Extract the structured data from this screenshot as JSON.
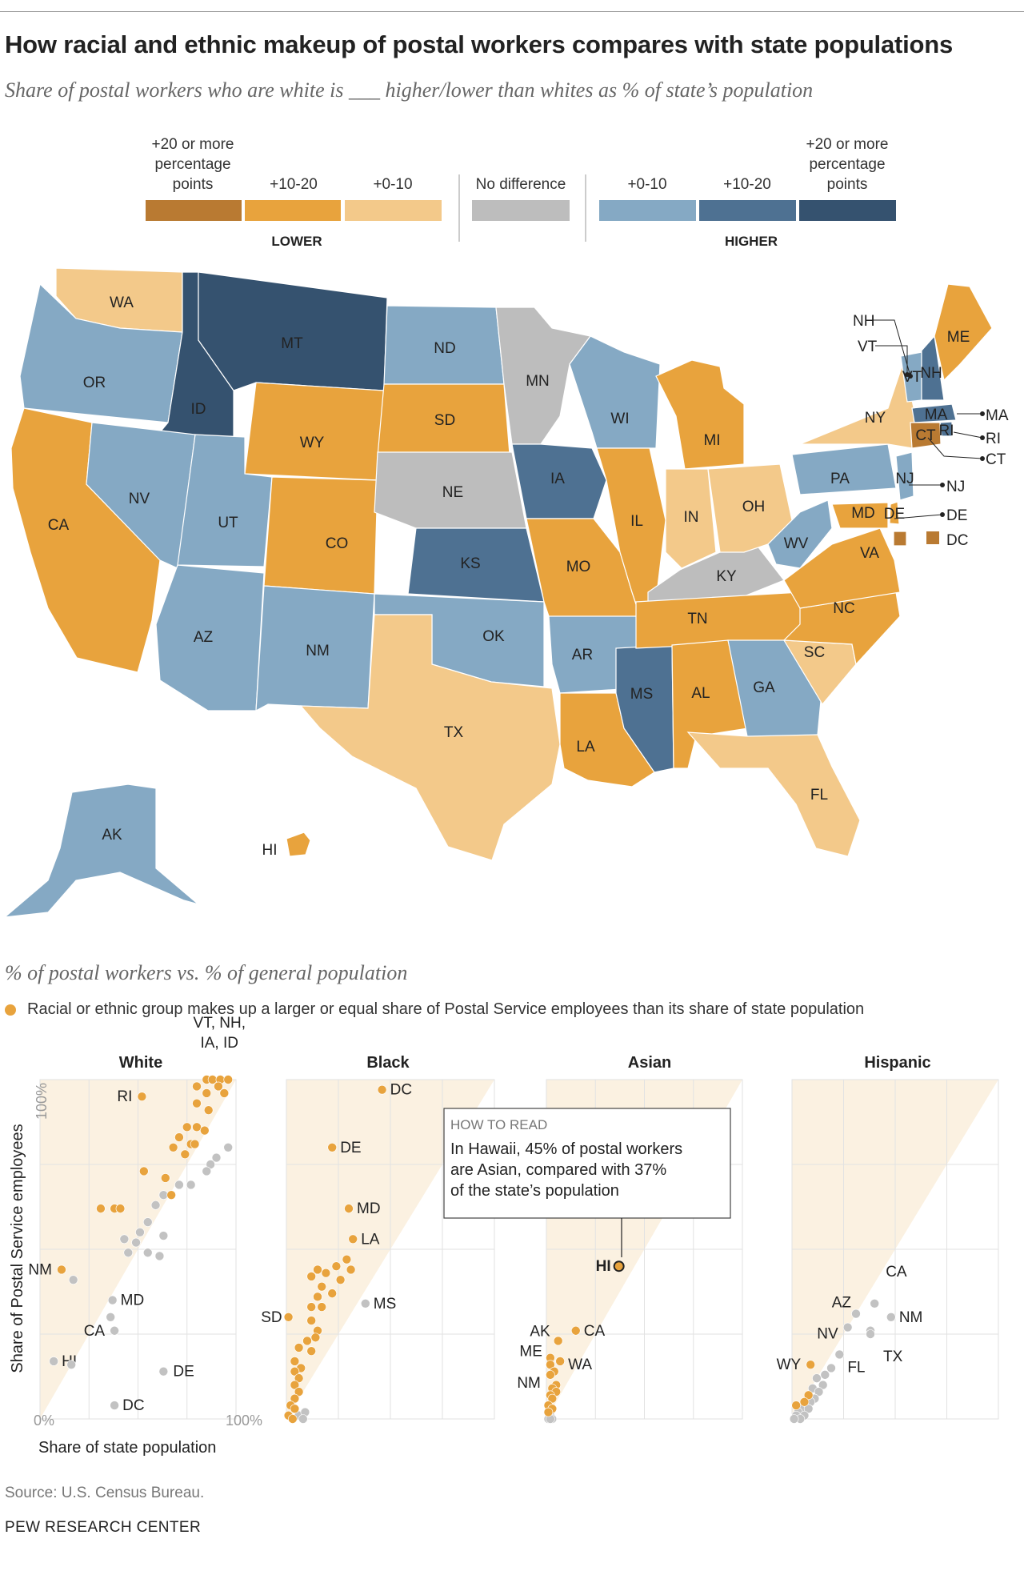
{
  "title": "How racial and ethnic makeup of postal workers compares with state populations",
  "subtitle": "Share of postal workers who are white is ___ higher/lower than whites as % of state’s population",
  "legend": {
    "items": [
      {
        "label": "+20 or more percentage points",
        "color": "#b97a32"
      },
      {
        "label": "+10-20",
        "color": "#e8a33d"
      },
      {
        "label": "+0-10",
        "color": "#f3c98a"
      },
      {
        "label": "No difference",
        "color": "#bdbdbd"
      },
      {
        "label": "+0-10",
        "color": "#85a9c4"
      },
      {
        "label": "+10-20",
        "color": "#4e7192"
      },
      {
        "label": "+20 or more percentage points",
        "color": "#35526f"
      }
    ],
    "lower_label": "LOWER",
    "higher_label": "HIGHER"
  },
  "states": [
    {
      "abbr": "WA",
      "category": "lower_0_10"
    },
    {
      "abbr": "OR",
      "category": "higher_0_10"
    },
    {
      "abbr": "CA",
      "category": "lower_10_20"
    },
    {
      "abbr": "ID",
      "category": "higher_20"
    },
    {
      "abbr": "NV",
      "category": "higher_0_10"
    },
    {
      "abbr": "MT",
      "category": "higher_20"
    },
    {
      "abbr": "WY",
      "category": "lower_10_20"
    },
    {
      "abbr": "UT",
      "category": "higher_0_10"
    },
    {
      "abbr": "CO",
      "category": "lower_10_20"
    },
    {
      "abbr": "AZ",
      "category": "higher_0_10"
    },
    {
      "abbr": "NM",
      "category": "higher_0_10"
    },
    {
      "abbr": "ND",
      "category": "higher_0_10"
    },
    {
      "abbr": "SD",
      "category": "lower_10_20"
    },
    {
      "abbr": "NE",
      "category": "no_difference"
    },
    {
      "abbr": "KS",
      "category": "higher_10_20"
    },
    {
      "abbr": "OK",
      "category": "higher_0_10"
    },
    {
      "abbr": "TX",
      "category": "lower_0_10"
    },
    {
      "abbr": "MN",
      "category": "no_difference"
    },
    {
      "abbr": "IA",
      "category": "higher_10_20"
    },
    {
      "abbr": "MO",
      "category": "lower_10_20"
    },
    {
      "abbr": "AR",
      "category": "higher_0_10"
    },
    {
      "abbr": "LA",
      "category": "lower_10_20"
    },
    {
      "abbr": "WI",
      "category": "higher_0_10"
    },
    {
      "abbr": "IL",
      "category": "lower_10_20"
    },
    {
      "abbr": "MS",
      "category": "higher_10_20"
    },
    {
      "abbr": "MI",
      "category": "lower_10_20"
    },
    {
      "abbr": "IN",
      "category": "lower_0_10"
    },
    {
      "abbr": "KY",
      "category": "no_difference"
    },
    {
      "abbr": "TN",
      "category": "lower_10_20"
    },
    {
      "abbr": "AL",
      "category": "lower_10_20"
    },
    {
      "abbr": "OH",
      "category": "lower_0_10"
    },
    {
      "abbr": "GA",
      "category": "higher_0_10"
    },
    {
      "abbr": "FL",
      "category": "lower_0_10"
    },
    {
      "abbr": "SC",
      "category": "lower_0_10"
    },
    {
      "abbr": "NC",
      "category": "lower_10_20"
    },
    {
      "abbr": "VA",
      "category": "lower_10_20"
    },
    {
      "abbr": "WV",
      "category": "higher_0_10"
    },
    {
      "abbr": "PA",
      "category": "higher_0_10"
    },
    {
      "abbr": "NY",
      "category": "lower_0_10"
    },
    {
      "abbr": "VT",
      "category": "higher_0_10"
    },
    {
      "abbr": "NH",
      "category": "higher_10_20"
    },
    {
      "abbr": "ME",
      "category": "lower_10_20"
    },
    {
      "abbr": "MA",
      "category": "higher_10_20"
    },
    {
      "abbr": "RI",
      "category": "higher_10_20"
    },
    {
      "abbr": "CT",
      "category": "lower_20"
    },
    {
      "abbr": "NJ",
      "category": "higher_0_10"
    },
    {
      "abbr": "DE",
      "category": "lower_10_20"
    },
    {
      "abbr": "MD",
      "category": "lower_10_20"
    },
    {
      "abbr": "DC",
      "category": "lower_20"
    },
    {
      "abbr": "AK",
      "category": "higher_0_10"
    },
    {
      "abbr": "HI",
      "category": "lower_10_20"
    }
  ],
  "section_subtitle": "% of postal workers vs. % of general population",
  "dot_legend": "Racial or ethnic group makes up a larger or equal share of Postal Service employees than its share of state population",
  "axes": {
    "y_label": "Share of Postal Service employees",
    "x_label": "Share of state population",
    "tick_0": "0%",
    "tick_100_y": "100%",
    "tick_100_x": "100%"
  },
  "how_to_read": {
    "heading": "HOW TO READ",
    "line1": "In Hawaii, 45% of postal workers",
    "line2": "are Asian, compared with 37%",
    "line3": "of the state’s population"
  },
  "source": "Source: U.S. Census Bureau.",
  "credit": "PEW RESEARCH CENTER",
  "colors": {
    "dot_orange": "#e8a33d",
    "dot_gray": "#c2c2c2",
    "triangle": "#fbf1e1"
  },
  "chart_data": {
    "type": "scatter",
    "x_label": "Share of state population",
    "y_label": "Share of Postal Service employees",
    "xlim": [
      0,
      100
    ],
    "ylim": [
      0,
      100
    ],
    "panels": [
      {
        "title": "White",
        "points": [
          {
            "x": 85,
            "y": 100,
            "label": "VT, NH, IA, ID",
            "above": true
          },
          {
            "x": 88,
            "y": 100,
            "above": true
          },
          {
            "x": 92,
            "y": 100,
            "above": true
          },
          {
            "x": 96,
            "y": 100,
            "above": true
          },
          {
            "x": 80,
            "y": 98,
            "above": true
          },
          {
            "x": 91,
            "y": 98,
            "above": true
          },
          {
            "x": 85,
            "y": 96,
            "above": true
          },
          {
            "x": 94,
            "y": 96,
            "above": true
          },
          {
            "x": 52,
            "y": 95,
            "label": "RI",
            "above": true
          },
          {
            "x": 80,
            "y": 93,
            "above": true
          },
          {
            "x": 86,
            "y": 91,
            "above": true
          },
          {
            "x": 75,
            "y": 86,
            "above": true
          },
          {
            "x": 80,
            "y": 86,
            "above": true
          },
          {
            "x": 84,
            "y": 85,
            "above": true
          },
          {
            "x": 71,
            "y": 83,
            "above": true
          },
          {
            "x": 77,
            "y": 81,
            "above": true
          },
          {
            "x": 79,
            "y": 81,
            "above": true
          },
          {
            "x": 68,
            "y": 80,
            "above": true
          },
          {
            "x": 74,
            "y": 78,
            "above": true
          },
          {
            "x": 53,
            "y": 73,
            "above": true
          },
          {
            "x": 64,
            "y": 71,
            "above": true
          },
          {
            "x": 67,
            "y": 66,
            "above": true
          },
          {
            "x": 31,
            "y": 62,
            "above": true
          },
          {
            "x": 38,
            "y": 62,
            "above": true
          },
          {
            "x": 41,
            "y": 62,
            "above": true
          },
          {
            "x": 11,
            "y": 44,
            "label": "NM",
            "above": true
          },
          {
            "x": 96,
            "y": 80,
            "above": false
          },
          {
            "x": 90,
            "y": 77,
            "above": false
          },
          {
            "x": 87,
            "y": 75,
            "above": false
          },
          {
            "x": 85,
            "y": 73,
            "above": false
          },
          {
            "x": 71,
            "y": 69,
            "above": false
          },
          {
            "x": 77,
            "y": 69,
            "above": false
          },
          {
            "x": 63,
            "y": 66,
            "above": false
          },
          {
            "x": 59,
            "y": 63,
            "above": false
          },
          {
            "x": 55,
            "y": 58,
            "above": false
          },
          {
            "x": 51,
            "y": 55,
            "above": false
          },
          {
            "x": 63,
            "y": 54,
            "above": false
          },
          {
            "x": 43,
            "y": 53,
            "above": false
          },
          {
            "x": 49,
            "y": 52,
            "above": false
          },
          {
            "x": 45,
            "y": 49,
            "above": false
          },
          {
            "x": 55,
            "y": 49,
            "above": false
          },
          {
            "x": 61,
            "y": 48,
            "above": false
          },
          {
            "x": 17,
            "y": 41,
            "above": false
          },
          {
            "x": 37,
            "y": 35,
            "label": "MD",
            "above": false
          },
          {
            "x": 36,
            "y": 30,
            "above": false
          },
          {
            "x": 38,
            "y": 26,
            "label": "CA",
            "above": false
          },
          {
            "x": 7,
            "y": 17,
            "label": "HI",
            "above": false
          },
          {
            "x": 16,
            "y": 16,
            "above": false
          },
          {
            "x": 63,
            "y": 14,
            "label": "DE",
            "above": false
          },
          {
            "x": 38,
            "y": 4,
            "label": "DC",
            "above": false
          }
        ]
      },
      {
        "title": "Black",
        "points": [
          {
            "x": 46,
            "y": 97,
            "label": "DC",
            "above": true
          },
          {
            "x": 22,
            "y": 80,
            "label": "DE",
            "above": true
          },
          {
            "x": 30,
            "y": 62,
            "label": "MD",
            "above": true
          },
          {
            "x": 32,
            "y": 53,
            "label": "LA",
            "above": true
          },
          {
            "x": 29,
            "y": 47,
            "above": true
          },
          {
            "x": 24,
            "y": 45,
            "above": true
          },
          {
            "x": 31,
            "y": 44,
            "above": true
          },
          {
            "x": 15,
            "y": 44,
            "above": true
          },
          {
            "x": 19,
            "y": 43,
            "above": true
          },
          {
            "x": 12,
            "y": 42,
            "above": true
          },
          {
            "x": 26,
            "y": 41,
            "above": true
          },
          {
            "x": 17,
            "y": 39,
            "above": true
          },
          {
            "x": 22,
            "y": 37,
            "above": true
          },
          {
            "x": 15,
            "y": 36,
            "above": true
          },
          {
            "x": 12,
            "y": 33,
            "above": true
          },
          {
            "x": 17,
            "y": 33,
            "above": true
          },
          {
            "x": 12,
            "y": 29,
            "above": true
          },
          {
            "x": 15,
            "y": 26,
            "above": true
          },
          {
            "x": 14,
            "y": 24,
            "above": true
          },
          {
            "x": 1,
            "y": 30,
            "label": "SD",
            "above": true
          },
          {
            "x": 10,
            "y": 23,
            "above": true
          },
          {
            "x": 6,
            "y": 21,
            "above": true
          },
          {
            "x": 12,
            "y": 20,
            "above": true
          },
          {
            "x": 4,
            "y": 17,
            "above": true
          },
          {
            "x": 7,
            "y": 15,
            "above": true
          },
          {
            "x": 4,
            "y": 14,
            "above": true
          },
          {
            "x": 6,
            "y": 12,
            "above": true
          },
          {
            "x": 4,
            "y": 10,
            "above": true
          },
          {
            "x": 6,
            "y": 8,
            "above": true
          },
          {
            "x": 4,
            "y": 6,
            "above": true
          },
          {
            "x": 2,
            "y": 4,
            "above": true
          },
          {
            "x": 4,
            "y": 3,
            "above": true
          },
          {
            "x": 1,
            "y": 1,
            "above": true
          },
          {
            "x": 3,
            "y": 0,
            "above": true
          },
          {
            "x": 38,
            "y": 34,
            "label": "MS",
            "above": false
          },
          {
            "x": 6,
            "y": 1,
            "above": false
          },
          {
            "x": 9,
            "y": 2,
            "above": false
          },
          {
            "x": 8,
            "y": 0,
            "above": false
          }
        ]
      },
      {
        "title": "Asian",
        "points": [
          {
            "x": 37,
            "y": 45,
            "label": "HI",
            "above": true,
            "highlight": true
          },
          {
            "x": 15,
            "y": 26,
            "label": "CA",
            "above": true
          },
          {
            "x": 6,
            "y": 23,
            "label": "AK",
            "above": true
          },
          {
            "x": 2,
            "y": 18,
            "label": "ME",
            "above": true
          },
          {
            "x": 7,
            "y": 17,
            "label": "WA",
            "above": true
          },
          {
            "x": 2,
            "y": 16,
            "above": true
          },
          {
            "x": 4,
            "y": 14,
            "above": true
          },
          {
            "x": 2,
            "y": 13,
            "label": "NM",
            "above": true
          },
          {
            "x": 5,
            "y": 10,
            "above": true
          },
          {
            "x": 3,
            "y": 9,
            "above": true
          },
          {
            "x": 5,
            "y": 8,
            "above": true
          },
          {
            "x": 2,
            "y": 7,
            "above": true
          },
          {
            "x": 3,
            "y": 6,
            "above": true
          },
          {
            "x": 1,
            "y": 4,
            "above": true
          },
          {
            "x": 3,
            "y": 3,
            "above": true
          },
          {
            "x": 1,
            "y": 2,
            "above": true
          },
          {
            "x": 2,
            "y": 1,
            "above": false
          },
          {
            "x": 1,
            "y": 0,
            "above": false
          },
          {
            "x": 3,
            "y": 0,
            "above": false
          },
          {
            "x": 2,
            "y": 0,
            "above": false
          }
        ]
      },
      {
        "title": "Hispanic",
        "points": [
          {
            "x": 40,
            "y": 34,
            "label": "CA",
            "above": false
          },
          {
            "x": 48,
            "y": 30,
            "label": "NM",
            "above": false
          },
          {
            "x": 31,
            "y": 31,
            "label": "AZ",
            "above": false
          },
          {
            "x": 27,
            "y": 27,
            "label": "NV",
            "above": false
          },
          {
            "x": 38,
            "y": 26,
            "above": false
          },
          {
            "x": 38,
            "y": 25,
            "label": "TX",
            "above": false
          },
          {
            "x": 23,
            "y": 19,
            "label": "FL",
            "above": false
          },
          {
            "x": 9,
            "y": 16,
            "label": "WY",
            "above": true
          },
          {
            "x": 19,
            "y": 15,
            "above": false
          },
          {
            "x": 16,
            "y": 13,
            "above": false
          },
          {
            "x": 12,
            "y": 12,
            "above": false
          },
          {
            "x": 15,
            "y": 10,
            "above": false
          },
          {
            "x": 10,
            "y": 9,
            "above": false
          },
          {
            "x": 13,
            "y": 8,
            "above": false
          },
          {
            "x": 8,
            "y": 7,
            "above": true
          },
          {
            "x": 11,
            "y": 6,
            "above": false
          },
          {
            "x": 6,
            "y": 5,
            "above": true
          },
          {
            "x": 9,
            "y": 5,
            "above": false
          },
          {
            "x": 2,
            "y": 4,
            "above": true
          },
          {
            "x": 5,
            "y": 3,
            "above": false
          },
          {
            "x": 8,
            "y": 3,
            "above": false
          },
          {
            "x": 3,
            "y": 2,
            "above": false
          },
          {
            "x": 6,
            "y": 1,
            "above": false
          },
          {
            "x": 2,
            "y": 1,
            "above": false
          },
          {
            "x": 4,
            "y": 0,
            "above": false
          },
          {
            "x": 1,
            "y": 0,
            "above": false
          }
        ]
      }
    ]
  }
}
